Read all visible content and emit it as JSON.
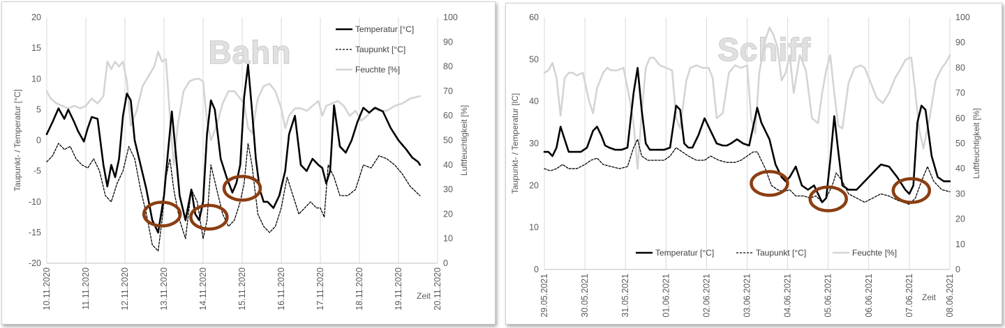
{
  "chart_data": [
    {
      "type": "line",
      "title": "Bahn",
      "xlabel": "Zeit",
      "ylabel": "Taupunkt- / Temperatur [°C]",
      "y2label": "Luftfeuchtigkeit [%]",
      "ylim": [
        -20,
        20
      ],
      "ytick_step": 5,
      "y2lim": [
        0,
        100
      ],
      "y2tick_step": 10,
      "categories": [
        "10.11.2020",
        "11.11.2020",
        "12.11.2020",
        "13.11.2020",
        "14.11.2020",
        "15.11.2020",
        "16.11.2020",
        "17.11.2020",
        "18.11.2020",
        "19.11.2020",
        "20.11.2020"
      ],
      "xlim": [
        0,
        10
      ],
      "legend_position": "top-right",
      "series": [
        {
          "name": "Temperatur [°C]",
          "axis": "left",
          "color": "#000000",
          "style": "solid",
          "width": 2.6,
          "x": [
            0,
            0.15,
            0.3,
            0.45,
            0.55,
            0.7,
            0.8,
            0.95,
            1.05,
            1.15,
            1.3,
            1.45,
            1.55,
            1.65,
            1.75,
            1.85,
            1.95,
            2.05,
            2.15,
            2.25,
            2.4,
            2.55,
            2.7,
            2.85,
            3.0,
            3.1,
            3.2,
            3.3,
            3.4,
            3.55,
            3.7,
            3.8,
            3.9,
            4.0,
            4.1,
            4.2,
            4.3,
            4.45,
            4.6,
            4.75,
            4.85,
            4.95,
            5.05,
            5.15,
            5.25,
            5.35,
            5.45,
            5.55,
            5.65,
            5.8,
            5.95,
            6.1,
            6.2,
            6.35,
            6.5,
            6.65,
            6.8,
            6.95,
            7.05,
            7.15,
            7.25,
            7.35,
            7.5,
            7.65,
            7.8,
            7.95,
            8.1,
            8.25,
            8.4,
            8.6,
            8.8,
            9.0,
            9.2,
            9.35,
            9.5,
            9.55
          ],
          "y": [
            1,
            3,
            5.2,
            3.5,
            5.0,
            3.0,
            1.5,
            -0.2,
            2,
            3.8,
            3.5,
            -4,
            -7.5,
            -4,
            -6,
            -3,
            4,
            7.6,
            6.5,
            0,
            -4,
            -8,
            -13,
            -15,
            -9,
            -2,
            4.7,
            -2,
            -9,
            -13,
            -8,
            -12,
            -13,
            -10,
            1,
            6.5,
            5,
            -3,
            -6,
            -8.5,
            -7,
            -4,
            7,
            12.3,
            5,
            -3,
            -8,
            -10,
            -10,
            -11,
            -9,
            -5,
            1,
            4,
            -4,
            -5,
            -3,
            -4,
            -4.5,
            -7,
            -5,
            5.7,
            -1,
            -2,
            0,
            3,
            5.3,
            4.5,
            5.3,
            4.7,
            2,
            0,
            -1.5,
            -2.8,
            -3.5,
            -4
          ]
        },
        {
          "name": "Taupunkt [°C]",
          "axis": "left",
          "color": "#000000",
          "style": "dashed",
          "width": 1.3,
          "x": [
            0,
            0.15,
            0.3,
            0.45,
            0.6,
            0.75,
            0.9,
            1.05,
            1.2,
            1.35,
            1.5,
            1.65,
            1.8,
            1.95,
            2.1,
            2.25,
            2.4,
            2.55,
            2.7,
            2.85,
            2.95,
            3.05,
            3.15,
            3.25,
            3.4,
            3.55,
            3.7,
            3.85,
            4.0,
            4.1,
            4.2,
            4.35,
            4.5,
            4.65,
            4.8,
            4.95,
            5.05,
            5.15,
            5.25,
            5.4,
            5.55,
            5.7,
            5.85,
            6.0,
            6.15,
            6.3,
            6.45,
            6.6,
            6.75,
            6.9,
            7.0,
            7.1,
            7.2,
            7.35,
            7.5,
            7.7,
            7.9,
            8.1,
            8.3,
            8.5,
            8.7,
            8.9,
            9.1,
            9.3,
            9.55
          ],
          "y": [
            -3.5,
            -2.5,
            -0.5,
            -1.5,
            -1.0,
            -3,
            -4,
            -4.5,
            -3,
            -5,
            -9,
            -10,
            -7,
            -5,
            -1,
            -3,
            -8,
            -12,
            -17,
            -18,
            -13,
            -6,
            -3,
            -8,
            -13,
            -16,
            -8,
            -10,
            -16,
            -13,
            -4,
            -8,
            -12,
            -14,
            -13,
            -10,
            -7,
            -0.5,
            -4,
            -12,
            -14,
            -15,
            -14,
            -11,
            -6,
            -9,
            -12,
            -11,
            -10,
            -11,
            -11,
            -12.5,
            -4,
            -6,
            -9,
            -9,
            -8,
            -4,
            -4.5,
            -2.5,
            -3,
            -4,
            -5.5,
            -7.5,
            -9
          ]
        },
        {
          "name": "Feuchte [%]",
          "axis": "right",
          "color": "#d4d4d4",
          "style": "solid",
          "width": 2.6,
          "x": [
            0,
            0.1,
            0.25,
            0.4,
            0.55,
            0.7,
            0.85,
            1.0,
            1.15,
            1.3,
            1.45,
            1.55,
            1.65,
            1.75,
            1.85,
            1.95,
            2.05,
            2.15,
            2.3,
            2.45,
            2.6,
            2.75,
            2.85,
            2.95,
            3.05,
            3.15,
            3.25,
            3.35,
            3.5,
            3.65,
            3.8,
            3.9,
            4.0,
            4.1,
            4.2,
            4.35,
            4.5,
            4.65,
            4.8,
            4.95,
            5.05,
            5.15,
            5.25,
            5.4,
            5.55,
            5.7,
            5.85,
            6.0,
            6.1,
            6.2,
            6.35,
            6.5,
            6.65,
            6.8,
            6.95,
            7.05,
            7.15,
            7.3,
            7.45,
            7.6,
            7.75,
            7.9,
            8.05,
            8.2,
            8.35,
            8.5,
            8.7,
            8.9,
            9.1,
            9.3,
            9.55
          ],
          "y": [
            70,
            67,
            65,
            64,
            63,
            64,
            63,
            64,
            67,
            65,
            68,
            82,
            79,
            82,
            80,
            82,
            74,
            56,
            62,
            72,
            76,
            80,
            86,
            82,
            83,
            60,
            40,
            56,
            70,
            74,
            75,
            75,
            74,
            58,
            50,
            56,
            65,
            70,
            70,
            67,
            65,
            55,
            53,
            67,
            72,
            73,
            70,
            63,
            55,
            60,
            63,
            63,
            62,
            64,
            66,
            60,
            64,
            65,
            66,
            64,
            60,
            62,
            58,
            60,
            63,
            62,
            62,
            64,
            65,
            67,
            68
          ]
        }
      ],
      "legend": [
        "Temperatur [°C]",
        "Taupunkt [°C]",
        "Feuchte [%]"
      ],
      "annotations": [
        {
          "type": "ellipse",
          "color": "#8b3e12",
          "x": 2.95,
          "y": -12
        },
        {
          "type": "ellipse",
          "color": "#8b3e12",
          "x": 4.15,
          "y": -12.5
        },
        {
          "type": "ellipse",
          "color": "#8b3e12",
          "x": 5.0,
          "y": -7.8
        }
      ]
    },
    {
      "type": "line",
      "title": "Schiff",
      "xlabel": "Zeit",
      "ylabel": "Taupunkt- / Temperatur [lC]",
      "y2label": "Luftfeuchtigkeit [%]",
      "ylim": [
        0,
        60
      ],
      "ytick_step": 10,
      "y2lim": [
        0,
        100
      ],
      "y2tick_step": 10,
      "categories": [
        "29.05.2021",
        "30.05.2021",
        "31.05.2021",
        "01.06.2021",
        "02.06.2021",
        "03.06.2021",
        "04.06.2021",
        "05.06.2021",
        "06.06.2021",
        "07.06.2021",
        "08.06.2021"
      ],
      "xlim": [
        0,
        10
      ],
      "legend_position": "bottom",
      "series": [
        {
          "name": "Temperatur [°C]",
          "axis": "left",
          "color": "#000000",
          "style": "solid",
          "width": 2.6,
          "x": [
            0,
            0.1,
            0.2,
            0.3,
            0.4,
            0.5,
            0.6,
            0.75,
            0.9,
            1.05,
            1.2,
            1.3,
            1.4,
            1.5,
            1.6,
            1.75,
            1.9,
            2.05,
            2.2,
            2.3,
            2.4,
            2.5,
            2.6,
            2.7,
            2.8,
            2.95,
            3.1,
            3.25,
            3.35,
            3.45,
            3.55,
            3.65,
            3.8,
            3.95,
            4.1,
            4.25,
            4.4,
            4.5,
            4.6,
            4.75,
            4.9,
            5.05,
            5.15,
            5.25,
            5.35,
            5.45,
            5.55,
            5.7,
            5.85,
            5.95,
            6.05,
            6.2,
            6.35,
            6.5,
            6.65,
            6.75,
            6.85,
            6.95,
            7.05,
            7.15,
            7.25,
            7.35,
            7.5,
            7.7,
            7.9,
            8.1,
            8.3,
            8.5,
            8.7,
            8.9,
            9.0,
            9.1,
            9.2,
            9.3,
            9.4,
            9.55,
            9.7,
            9.85,
            10.0
          ],
          "y": [
            28,
            28,
            27,
            29,
            34,
            31,
            28,
            28,
            28,
            29,
            33,
            34,
            32,
            29.5,
            29,
            28.5,
            28.5,
            29,
            42,
            48,
            38,
            30,
            28.5,
            28.5,
            28.5,
            28.5,
            29,
            39,
            38,
            30,
            29,
            29,
            32,
            36,
            33,
            30,
            29.5,
            29.5,
            30,
            31,
            30,
            29.5,
            34,
            38.5,
            35,
            33,
            31,
            25,
            22,
            21,
            22,
            24.5,
            20,
            19,
            20,
            18,
            16,
            17,
            26,
            36.5,
            28,
            20,
            19,
            19,
            21,
            23,
            25,
            24.5,
            22,
            19,
            18,
            20,
            35,
            39,
            38,
            27,
            22,
            21,
            21
          ]
        },
        {
          "name": "Taupunkt [°C]",
          "axis": "left",
          "color": "#000000",
          "style": "dashed",
          "width": 1.3,
          "x": [
            0,
            0.15,
            0.3,
            0.45,
            0.6,
            0.8,
            1.0,
            1.15,
            1.3,
            1.45,
            1.65,
            1.85,
            2.05,
            2.2,
            2.3,
            2.4,
            2.55,
            2.75,
            2.95,
            3.1,
            3.25,
            3.4,
            3.55,
            3.75,
            3.95,
            4.1,
            4.3,
            4.5,
            4.7,
            4.85,
            5.0,
            5.15,
            5.25,
            5.35,
            5.45,
            5.6,
            5.75,
            5.9,
            6.05,
            6.2,
            6.4,
            6.55,
            6.7,
            6.85,
            6.95,
            7.1,
            7.2,
            7.35,
            7.5,
            7.7,
            7.9,
            8.1,
            8.3,
            8.5,
            8.7,
            8.85,
            9.0,
            9.15,
            9.3,
            9.45,
            9.6,
            9.8,
            10.0
          ],
          "y": [
            24,
            23.5,
            24,
            25,
            24,
            24,
            25,
            26,
            26.5,
            25,
            24.5,
            24,
            24.5,
            29,
            31,
            27,
            26,
            26,
            26,
            27,
            29,
            28,
            27,
            26,
            26,
            27,
            26,
            25.5,
            25.5,
            26,
            27,
            28,
            28,
            26,
            24,
            20,
            19,
            18.5,
            19,
            17.5,
            17.5,
            17,
            17.5,
            16,
            17,
            20,
            23,
            21,
            18,
            17,
            16,
            17,
            18,
            17.5,
            16.5,
            16,
            15.5,
            17,
            21,
            24.5,
            21,
            19,
            18.5
          ]
        },
        {
          "name": "Feuchte [%]",
          "axis": "right",
          "color": "#d4d4d4",
          "style": "solid",
          "width": 2.6,
          "x": [
            0,
            0.1,
            0.2,
            0.3,
            0.4,
            0.5,
            0.6,
            0.7,
            0.8,
            0.95,
            1.1,
            1.2,
            1.3,
            1.45,
            1.55,
            1.65,
            1.8,
            1.95,
            2.1,
            2.2,
            2.3,
            2.4,
            2.5,
            2.6,
            2.7,
            2.85,
            3.0,
            3.15,
            3.25,
            3.35,
            3.5,
            3.6,
            3.75,
            3.9,
            4.05,
            4.15,
            4.25,
            4.4,
            4.55,
            4.7,
            4.85,
            5.0,
            5.1,
            5.2,
            5.3,
            5.45,
            5.55,
            5.65,
            5.75,
            5.85,
            5.95,
            6.05,
            6.15,
            6.3,
            6.45,
            6.6,
            6.75,
            6.85,
            6.95,
            7.05,
            7.15,
            7.25,
            7.35,
            7.5,
            7.65,
            7.8,
            7.9,
            8.0,
            8.1,
            8.2,
            8.35,
            8.5,
            8.65,
            8.8,
            8.9,
            9.0,
            9.05,
            9.15,
            9.25,
            9.35,
            9.5,
            9.65,
            9.8,
            9.9,
            10.0
          ],
          "y": [
            78,
            79,
            82,
            76,
            61,
            76,
            78,
            78,
            77,
            78,
            67,
            62,
            72,
            78,
            80,
            79,
            79,
            80,
            68,
            58,
            40,
            62,
            80,
            84,
            84,
            81,
            80,
            79,
            60,
            56,
            75,
            80,
            81,
            80,
            80,
            76,
            60,
            62,
            78,
            81,
            80,
            81,
            60,
            54,
            78,
            91,
            96,
            93,
            88,
            75,
            78,
            85,
            70,
            85,
            79,
            60,
            58,
            70,
            79,
            85,
            70,
            57,
            56,
            74,
            80,
            81,
            80,
            76,
            72,
            68,
            66,
            70,
            76,
            80,
            83,
            84,
            84,
            70,
            55,
            48,
            60,
            75,
            80,
            82,
            85
          ]
        }
      ],
      "legend": [
        "Temperatur [°C]",
        "Taupunkt [°C]",
        "Feuchte [%]"
      ],
      "annotations": [
        {
          "type": "ellipse",
          "color": "#8b3e12",
          "x": 5.55,
          "y": 20.5
        },
        {
          "type": "ellipse",
          "color": "#8b3e12",
          "x": 7.0,
          "y": 16.8
        },
        {
          "type": "ellipse",
          "color": "#8b3e12",
          "x": 9.05,
          "y": 18.8
        }
      ]
    }
  ]
}
